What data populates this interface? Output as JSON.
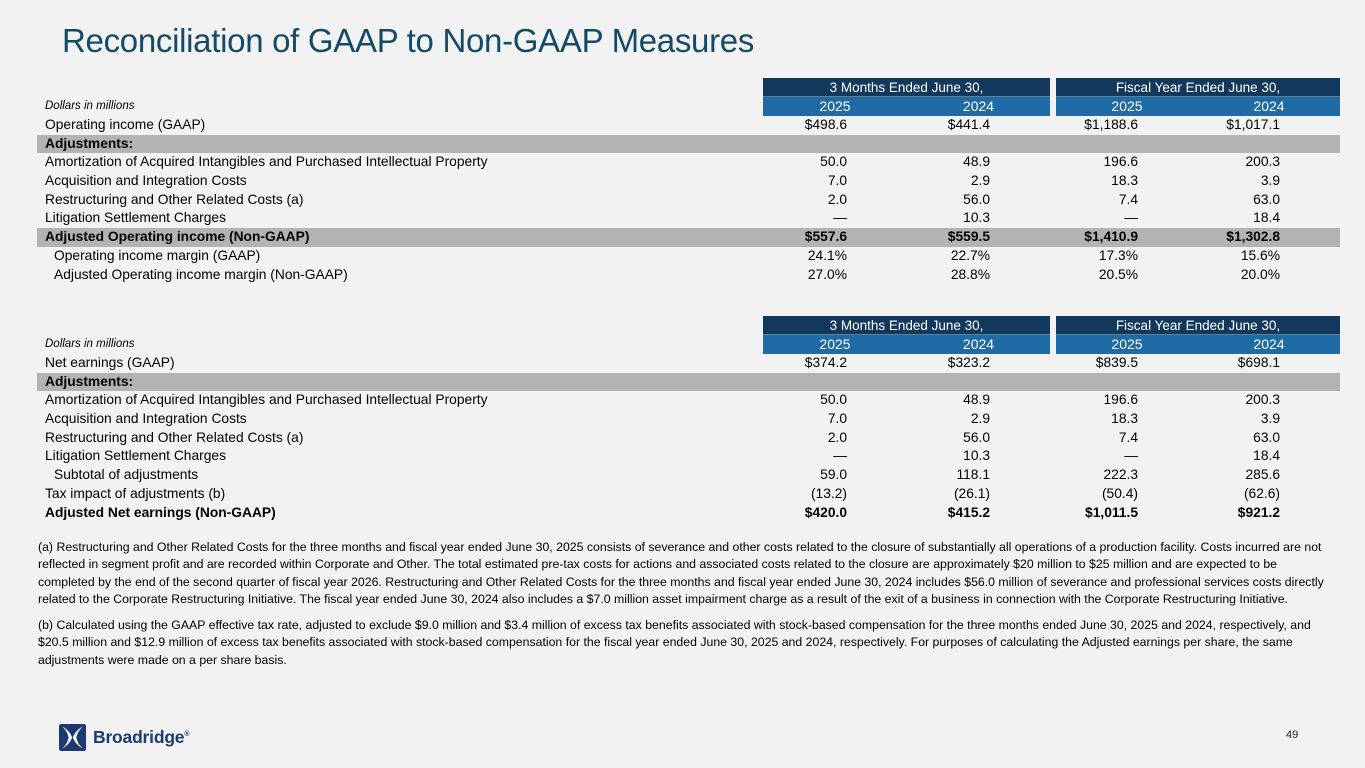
{
  "page": {
    "title": "Reconciliation of GAAP to Non-GAAP Measures",
    "background": "#f2f2f2"
  },
  "colors": {
    "title_text": "#144a67",
    "header_dark_navy": "#12395c",
    "header_blue": "#1e6ba6",
    "band_gray": "#b3b3b3",
    "logo_navy": "#1b3a73"
  },
  "tables": [
    {
      "note": "Dollars in millions",
      "col_groups": [
        "3 Months Ended June 30,",
        "Fiscal Year Ended June 30,"
      ],
      "years": [
        "2025",
        "2024",
        "2025",
        "2024"
      ],
      "rows": [
        {
          "label": "Operating income (GAAP)",
          "style": "normal",
          "values": [
            "$498.6",
            "$441.4",
            "$1,188.6",
            "$1,017.1"
          ]
        },
        {
          "label": "Adjustments:",
          "style": "band",
          "values": [
            "",
            "",
            "",
            ""
          ]
        },
        {
          "label": "Amortization of Acquired Intangibles and Purchased Intellectual Property",
          "style": "normal",
          "values": [
            "50.0",
            "48.9",
            "196.6",
            "200.3"
          ]
        },
        {
          "label": "Acquisition and Integration Costs",
          "style": "normal",
          "values": [
            "7.0",
            "2.9",
            "18.3",
            "3.9"
          ]
        },
        {
          "label": "Restructuring and Other Related Costs (a)",
          "style": "normal",
          "values": [
            "2.0",
            "56.0",
            "7.4",
            "63.0"
          ]
        },
        {
          "label": "Litigation Settlement Charges",
          "style": "normal",
          "values": [
            "—",
            "10.3",
            "—",
            "18.4"
          ]
        },
        {
          "label": "Adjusted Operating income (Non-GAAP)",
          "style": "band_bold",
          "values": [
            "$557.6",
            "$559.5",
            "$1,410.9",
            "$1,302.8"
          ]
        },
        {
          "label": "Operating income margin (GAAP)",
          "style": "indent",
          "values": [
            "24.1%",
            "22.7%",
            "17.3%",
            "15.6%"
          ]
        },
        {
          "label": "Adjusted Operating income margin (Non-GAAP)",
          "style": "indent",
          "values": [
            "27.0%",
            "28.8%",
            "20.5%",
            "20.0%"
          ]
        }
      ]
    },
    {
      "note": "Dollars in millions",
      "col_groups": [
        "3 Months Ended June 30,",
        "Fiscal Year Ended June 30,"
      ],
      "years": [
        "2025",
        "2024",
        "2025",
        "2024"
      ],
      "rows": [
        {
          "label": "Net earnings (GAAP)",
          "style": "normal",
          "values": [
            "$374.2",
            "$323.2",
            "$839.5",
            "$698.1"
          ]
        },
        {
          "label": "Adjustments:",
          "style": "band",
          "values": [
            "",
            "",
            "",
            ""
          ]
        },
        {
          "label": "Amortization of Acquired Intangibles and Purchased Intellectual Property",
          "style": "normal",
          "values": [
            "50.0",
            "48.9",
            "196.6",
            "200.3"
          ]
        },
        {
          "label": "Acquisition and Integration Costs",
          "style": "normal",
          "values": [
            "7.0",
            "2.9",
            "18.3",
            "3.9"
          ]
        },
        {
          "label": "Restructuring and Other Related Costs (a)",
          "style": "normal",
          "values": [
            "2.0",
            "56.0",
            "7.4",
            "63.0"
          ]
        },
        {
          "label": "Litigation Settlement Charges",
          "style": "normal",
          "values": [
            "—",
            "10.3",
            "—",
            "18.4"
          ]
        },
        {
          "label": "Subtotal of adjustments",
          "style": "indent",
          "values": [
            "59.0",
            "118.1",
            "222.3",
            "285.6"
          ]
        },
        {
          "label": "Tax impact of adjustments (b)",
          "style": "normal",
          "values": [
            "(13.2)",
            "(26.1)",
            "(50.4)",
            "(62.6)"
          ]
        },
        {
          "label": "Adjusted Net earnings (Non-GAAP)",
          "style": "bold",
          "values": [
            "$420.0",
            "$415.2",
            "$1,011.5",
            "$921.2"
          ]
        }
      ]
    }
  ],
  "footnotes": [
    "(a) Restructuring and Other Related Costs for the three months and fiscal year ended June 30, 2025 consists of severance and other costs related to the closure of substantially all operations of a production facility. Costs incurred are not reflected in segment profit and are recorded within Corporate and Other. The total estimated pre-tax costs for actions and associated costs related to the closure are approximately $20 million to $25 million and are expected to be completed by the end of the second quarter of fiscal year 2026. Restructuring and Other Related Costs for the three months and fiscal year ended June 30, 2024 includes $56.0 million of severance and professional services costs directly related to the Corporate Restructuring Initiative. The fiscal year ended June 30, 2024 also includes a $7.0 million asset impairment charge as a result of the exit of a business in connection with the Corporate Restructuring Initiative.",
    "(b) Calculated using the GAAP effective tax rate, adjusted to exclude $9.0 million and $3.4 million of excess tax benefits associated with stock-based compensation for the three months ended June 30, 2025 and 2024, respectively, and $20.5 million and $12.9 million of excess tax benefits associated with stock-based compensation for the fiscal year ended June 30, 2025 and 2024, respectively. For purposes of calculating the Adjusted earnings per share, the same adjustments were made on a per share basis."
  ],
  "footer": {
    "brand": "Broadridge",
    "trademark": "®",
    "page_number": "49"
  }
}
